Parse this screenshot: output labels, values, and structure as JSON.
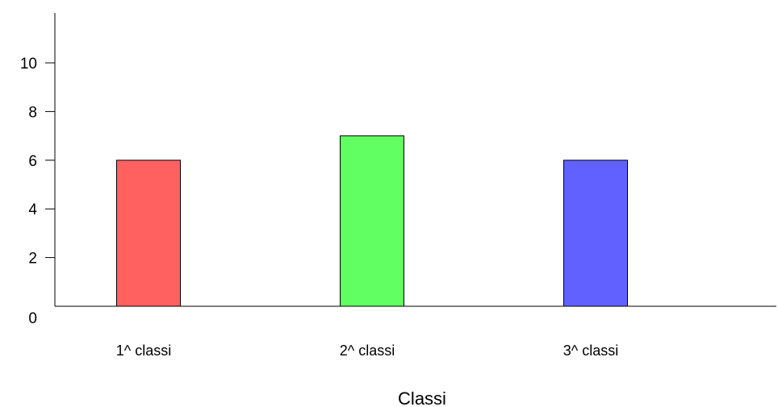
{
  "chart_data": {
    "type": "bar",
    "categories": [
      "1^ classi",
      "2^ classi",
      "3^ classi"
    ],
    "values": [
      6,
      7,
      6
    ],
    "colors": [
      "#ff6161",
      "#61ff61",
      "#6161ff"
    ],
    "title": "",
    "xlabel": "Classi",
    "ylabel": "",
    "ylim": [
      0,
      10
    ],
    "yticks": [
      0,
      2,
      4,
      6,
      8,
      10
    ],
    "grid": false,
    "legend": "none"
  }
}
